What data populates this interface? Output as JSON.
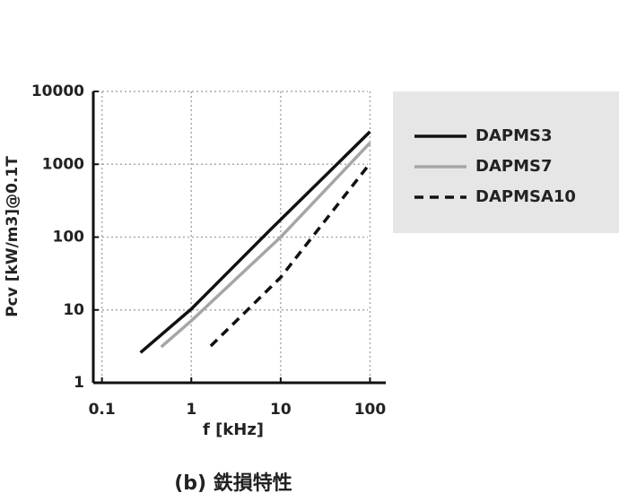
{
  "chart_data": {
    "type": "line",
    "caption": "(b) 鉄損特性",
    "x_label": "f [kHz]",
    "y_label": "Pcv [kW/m3]@0.1T",
    "x_log": true,
    "y_log": true,
    "grid": true,
    "legend": "right",
    "xlim": [
      0.08,
      150
    ],
    "xticks": [
      0.1,
      1,
      10,
      100
    ],
    "ylim": [
      1,
      10000
    ],
    "yticks": [
      1,
      10,
      100,
      1000,
      10000
    ],
    "series": [
      {
        "name": "DAPMS3",
        "color": "#111111",
        "dash": "solid",
        "x": [
          0.27,
          1,
          8,
          100
        ],
        "values": [
          2.6,
          10.3,
          133,
          2800
        ]
      },
      {
        "name": "DAPMS7",
        "color": "#a6a6a6",
        "dash": "solid",
        "x": [
          0.46,
          1,
          10,
          100
        ],
        "values": [
          3.1,
          7.1,
          100,
          1970
        ]
      },
      {
        "name": "DAPMSA10",
        "color": "#111111",
        "dash": "dashed",
        "x": [
          1.65,
          10,
          100
        ],
        "values": [
          3.2,
          28,
          1030
        ]
      }
    ]
  }
}
